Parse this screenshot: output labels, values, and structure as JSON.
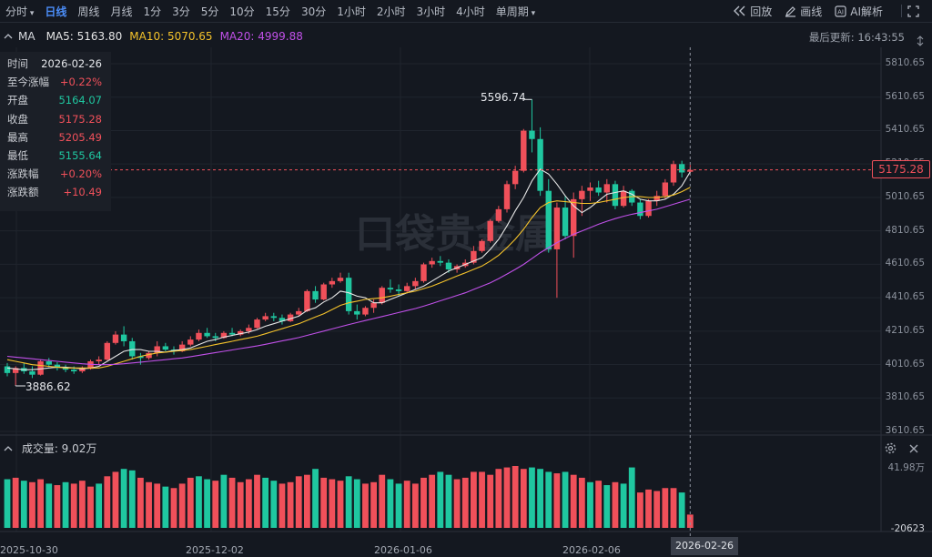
{
  "toolbar": {
    "intervals": [
      {
        "label": "分时",
        "dropdown": true
      },
      {
        "label": "日线",
        "active": true
      },
      {
        "label": "周线"
      },
      {
        "label": "月线"
      },
      {
        "label": "1分"
      },
      {
        "label": "3分"
      },
      {
        "label": "5分"
      },
      {
        "label": "10分"
      },
      {
        "label": "15分"
      },
      {
        "label": "30分"
      },
      {
        "label": "1小时"
      },
      {
        "label": "2小时"
      },
      {
        "label": "3小时"
      },
      {
        "label": "4小时"
      },
      {
        "label": "单周期",
        "dropdown": true
      }
    ],
    "replay_label": "回放",
    "draw_label": "画线",
    "ai_label": "AI解析"
  },
  "ma_bar": {
    "title": "MA",
    "ma5": "MA5: 5163.80",
    "ma10": "MA10: 5070.65",
    "ma20": "MA20: 4999.88",
    "last_update": "最后更新: 16:43:55",
    "colors": {
      "ma5": "#e6e6e6",
      "ma10": "#f5c32b",
      "ma20": "#c050e8"
    }
  },
  "info_panel": [
    {
      "key": "时间",
      "value": "2026-02-26",
      "color": "#e6e8ec"
    },
    {
      "key": "至今涨幅",
      "value": "+0.22%",
      "color": "#f0505a"
    },
    {
      "key": "开盘",
      "value": "5164.07",
      "color": "#1fc7a0"
    },
    {
      "key": "收盘",
      "value": "5175.28",
      "color": "#f0505a"
    },
    {
      "key": "最高",
      "value": "5205.49",
      "color": "#f0505a"
    },
    {
      "key": "最低",
      "value": "5155.64",
      "color": "#1fc7a0"
    },
    {
      "key": "涨跌幅",
      "value": "+0.20%",
      "color": "#f0505a"
    },
    {
      "key": "涨跌额",
      "value": "+10.49",
      "color": "#f0505a"
    }
  ],
  "price_axis": [
    "5810.65",
    "5610.65",
    "5410.65",
    "5210.65",
    "5010.65",
    "4810.65",
    "4610.65",
    "4410.65",
    "4210.65",
    "4010.65",
    "3810.65",
    "3610.65"
  ],
  "current_price": "5175.28",
  "annotations": {
    "high": "5596.74",
    "low": "3886.62"
  },
  "volume": {
    "title": "成交量: 9.02万",
    "max_label": "41.98万",
    "min_label": "-20623"
  },
  "date_axis": [
    "2025-10-30",
    "2025-12-02",
    "2026-01-06",
    "2026-02-06"
  ],
  "current_date": "2026-02-26",
  "watermark": "口袋贵金属",
  "colors": {
    "up": "#f0505a",
    "down": "#1fc7a0",
    "accent": "#4b8df8"
  },
  "chart_data": {
    "type": "candlestick",
    "ylim": [
      3610.65,
      5810.65
    ],
    "candles": [
      {
        "o": 4000,
        "h": 4020,
        "l": 3940,
        "c": 3960
      },
      {
        "o": 3960,
        "h": 4000,
        "l": 3886.62,
        "c": 3990
      },
      {
        "o": 3990,
        "h": 4020,
        "l": 3955,
        "c": 3970
      },
      {
        "o": 3970,
        "h": 4000,
        "l": 3930,
        "c": 3950
      },
      {
        "o": 3950,
        "h": 4040,
        "l": 3945,
        "c": 4030
      },
      {
        "o": 4030,
        "h": 4050,
        "l": 3995,
        "c": 4010
      },
      {
        "o": 4010,
        "h": 4025,
        "l": 3975,
        "c": 3990
      },
      {
        "o": 3990,
        "h": 4010,
        "l": 3965,
        "c": 3980
      },
      {
        "o": 3980,
        "h": 4000,
        "l": 3955,
        "c": 3970
      },
      {
        "o": 3970,
        "h": 4000,
        "l": 3960,
        "c": 3985
      },
      {
        "o": 3985,
        "h": 4040,
        "l": 3980,
        "c": 4030
      },
      {
        "o": 4030,
        "h": 4060,
        "l": 4010,
        "c": 4040
      },
      {
        "o": 4040,
        "h": 4150,
        "l": 4035,
        "c": 4140
      },
      {
        "o": 4140,
        "h": 4210,
        "l": 4130,
        "c": 4190
      },
      {
        "o": 4190,
        "h": 4240,
        "l": 4120,
        "c": 4150
      },
      {
        "o": 4150,
        "h": 4170,
        "l": 4040,
        "c": 4060
      },
      {
        "o": 4060,
        "h": 4080,
        "l": 4010,
        "c": 4050
      },
      {
        "o": 4050,
        "h": 4090,
        "l": 4040,
        "c": 4080
      },
      {
        "o": 4080,
        "h": 4150,
        "l": 4060,
        "c": 4120
      },
      {
        "o": 4120,
        "h": 4140,
        "l": 4090,
        "c": 4100
      },
      {
        "o": 4100,
        "h": 4120,
        "l": 4070,
        "c": 4090
      },
      {
        "o": 4090,
        "h": 4150,
        "l": 4085,
        "c": 4130
      },
      {
        "o": 4130,
        "h": 4180,
        "l": 4120,
        "c": 4160
      },
      {
        "o": 4160,
        "h": 4220,
        "l": 4150,
        "c": 4200
      },
      {
        "o": 4200,
        "h": 4230,
        "l": 4170,
        "c": 4180
      },
      {
        "o": 4180,
        "h": 4200,
        "l": 4150,
        "c": 4170
      },
      {
        "o": 4170,
        "h": 4210,
        "l": 4165,
        "c": 4200
      },
      {
        "o": 4200,
        "h": 4230,
        "l": 4180,
        "c": 4190
      },
      {
        "o": 4190,
        "h": 4220,
        "l": 4180,
        "c": 4210
      },
      {
        "o": 4210,
        "h": 4250,
        "l": 4195,
        "c": 4230
      },
      {
        "o": 4230,
        "h": 4290,
        "l": 4225,
        "c": 4280
      },
      {
        "o": 4280,
        "h": 4320,
        "l": 4270,
        "c": 4300
      },
      {
        "o": 4300,
        "h": 4320,
        "l": 4270,
        "c": 4290
      },
      {
        "o": 4290,
        "h": 4310,
        "l": 4250,
        "c": 4270
      },
      {
        "o": 4270,
        "h": 4320,
        "l": 4265,
        "c": 4310
      },
      {
        "o": 4310,
        "h": 4350,
        "l": 4300,
        "c": 4330
      },
      {
        "o": 4330,
        "h": 4460,
        "l": 4325,
        "c": 4450
      },
      {
        "o": 4450,
        "h": 4480,
        "l": 4380,
        "c": 4400
      },
      {
        "o": 4400,
        "h": 4500,
        "l": 4395,
        "c": 4490
      },
      {
        "o": 4490,
        "h": 4530,
        "l": 4470,
        "c": 4510
      },
      {
        "o": 4510,
        "h": 4560,
        "l": 4500,
        "c": 4530
      },
      {
        "o": 4530,
        "h": 4560,
        "l": 4310,
        "c": 4330
      },
      {
        "o": 4330,
        "h": 4370,
        "l": 4280,
        "c": 4310
      },
      {
        "o": 4310,
        "h": 4360,
        "l": 4300,
        "c": 4350
      },
      {
        "o": 4350,
        "h": 4400,
        "l": 4320,
        "c": 4380
      },
      {
        "o": 4380,
        "h": 4480,
        "l": 4370,
        "c": 4470
      },
      {
        "o": 4470,
        "h": 4520,
        "l": 4440,
        "c": 4460
      },
      {
        "o": 4460,
        "h": 4490,
        "l": 4420,
        "c": 4450
      },
      {
        "o": 4450,
        "h": 4500,
        "l": 4440,
        "c": 4480
      },
      {
        "o": 4480,
        "h": 4530,
        "l": 4460,
        "c": 4510
      },
      {
        "o": 4510,
        "h": 4620,
        "l": 4500,
        "c": 4610
      },
      {
        "o": 4610,
        "h": 4650,
        "l": 4590,
        "c": 4630
      },
      {
        "o": 4630,
        "h": 4660,
        "l": 4600,
        "c": 4620
      },
      {
        "o": 4620,
        "h": 4640,
        "l": 4560,
        "c": 4580
      },
      {
        "o": 4580,
        "h": 4610,
        "l": 4560,
        "c": 4600
      },
      {
        "o": 4600,
        "h": 4640,
        "l": 4590,
        "c": 4620
      },
      {
        "o": 4620,
        "h": 4720,
        "l": 4610,
        "c": 4690
      },
      {
        "o": 4690,
        "h": 4760,
        "l": 4680,
        "c": 4750
      },
      {
        "o": 4750,
        "h": 4880,
        "l": 4740,
        "c": 4870
      },
      {
        "o": 4870,
        "h": 4960,
        "l": 4860,
        "c": 4940
      },
      {
        "o": 4940,
        "h": 5110,
        "l": 4920,
        "c": 5090
      },
      {
        "o": 5090,
        "h": 5200,
        "l": 5060,
        "c": 5170
      },
      {
        "o": 5170,
        "h": 5420,
        "l": 5160,
        "c": 5410
      },
      {
        "o": 5410,
        "h": 5596.74,
        "l": 5280,
        "c": 5360
      },
      {
        "o": 5360,
        "h": 5430,
        "l": 5020,
        "c": 5050
      },
      {
        "o": 5050,
        "h": 5120,
        "l": 4680,
        "c": 4700
      },
      {
        "o": 4700,
        "h": 4980,
        "l": 4410,
        "c": 4950
      },
      {
        "o": 4950,
        "h": 5020,
        "l": 4760,
        "c": 4780
      },
      {
        "o": 4780,
        "h": 5040,
        "l": 4650,
        "c": 5000
      },
      {
        "o": 5000,
        "h": 5080,
        "l": 4900,
        "c": 5050
      },
      {
        "o": 5050,
        "h": 5100,
        "l": 4990,
        "c": 5070
      },
      {
        "o": 5070,
        "h": 5110,
        "l": 5020,
        "c": 5040
      },
      {
        "o": 5040,
        "h": 5120,
        "l": 4980,
        "c": 5090
      },
      {
        "o": 5090,
        "h": 5110,
        "l": 4940,
        "c": 4960
      },
      {
        "o": 4960,
        "h": 5080,
        "l": 4950,
        "c": 5050
      },
      {
        "o": 5050,
        "h": 5060,
        "l": 4960,
        "c": 4980
      },
      {
        "o": 4980,
        "h": 5000,
        "l": 4880,
        "c": 4900
      },
      {
        "o": 4900,
        "h": 5000,
        "l": 4890,
        "c": 4990
      },
      {
        "o": 4990,
        "h": 5050,
        "l": 4960,
        "c": 5020
      },
      {
        "o": 5020,
        "h": 5120,
        "l": 5000,
        "c": 5100
      },
      {
        "o": 5100,
        "h": 5230,
        "l": 5080,
        "c": 5210
      },
      {
        "o": 5210,
        "h": 5230,
        "l": 5130,
        "c": 5160
      },
      {
        "o": 5164.07,
        "h": 5205.49,
        "l": 5155.64,
        "c": 5175.28
      }
    ],
    "ma5": [
      3990,
      3985,
      3980,
      3980,
      3985,
      3990,
      3995,
      3995,
      3990,
      3985,
      3990,
      4000,
      4030,
      4060,
      4090,
      4100,
      4100,
      4090,
      4090,
      4085,
      4095,
      4100,
      4110,
      4130,
      4150,
      4160,
      4175,
      4185,
      4195,
      4205,
      4220,
      4240,
      4255,
      4270,
      4285,
      4300,
      4335,
      4350,
      4385,
      4410,
      4450,
      4440,
      4420,
      4410,
      4380,
      4380,
      4400,
      4420,
      4440,
      4460,
      4480,
      4510,
      4540,
      4570,
      4590,
      4610,
      4630,
      4650,
      4700,
      4760,
      4840,
      4930,
      5010,
      5110,
      5180,
      5150,
      5090,
      5020,
      4960,
      4920,
      4950,
      4990,
      5030,
      5040,
      5050,
      5030,
      5000,
      4990,
      4990,
      5000,
      5030,
      5080,
      5163.8
    ],
    "ma10": [
      4040,
      4030,
      4020,
      4010,
      4005,
      4000,
      3995,
      3990,
      3990,
      3990,
      3990,
      3990,
      4000,
      4015,
      4030,
      4045,
      4060,
      4070,
      4080,
      4085,
      4090,
      4095,
      4100,
      4110,
      4120,
      4130,
      4140,
      4150,
      4160,
      4170,
      4180,
      4195,
      4210,
      4225,
      4240,
      4255,
      4275,
      4295,
      4315,
      4340,
      4365,
      4380,
      4390,
      4400,
      4405,
      4410,
      4420,
      4430,
      4440,
      4450,
      4465,
      4480,
      4500,
      4520,
      4540,
      4560,
      4580,
      4600,
      4630,
      4665,
      4710,
      4760,
      4820,
      4890,
      4950,
      4980,
      4990,
      4985,
      4980,
      4975,
      4975,
      4980,
      4990,
      5000,
      5010,
      5015,
      5015,
      5010,
      5010,
      5015,
      5025,
      5045,
      5070.65
    ],
    "ma20": [
      4060,
      4055,
      4050,
      4045,
      4040,
      4035,
      4030,
      4025,
      4020,
      4015,
      4012,
      4010,
      4010,
      4012,
      4015,
      4020,
      4025,
      4030,
      4035,
      4040,
      4045,
      4050,
      4058,
      4066,
      4074,
      4082,
      4090,
      4098,
      4106,
      4114,
      4122,
      4132,
      4142,
      4152,
      4162,
      4172,
      4185,
      4198,
      4211,
      4224,
      4237,
      4250,
      4262,
      4274,
      4286,
      4298,
      4310,
      4322,
      4334,
      4346,
      4360,
      4376,
      4392,
      4408,
      4424,
      4440,
      4460,
      4480,
      4500,
      4525,
      4552,
      4580,
      4610,
      4645,
      4680,
      4710,
      4740,
      4765,
      4790,
      4810,
      4830,
      4850,
      4868,
      4884,
      4898,
      4910,
      4920,
      4930,
      4940,
      4955,
      4970,
      4985,
      4999.88
    ],
    "volume": [
      {
        "v": 33,
        "up": false
      },
      {
        "v": 34,
        "up": true
      },
      {
        "v": 32,
        "up": false
      },
      {
        "v": 31,
        "up": true
      },
      {
        "v": 33,
        "up": true
      },
      {
        "v": 30,
        "up": false
      },
      {
        "v": 29,
        "up": true
      },
      {
        "v": 31,
        "up": false
      },
      {
        "v": 30,
        "up": true
      },
      {
        "v": 32,
        "up": true
      },
      {
        "v": 28,
        "up": true
      },
      {
        "v": 30,
        "up": false
      },
      {
        "v": 35,
        "up": true
      },
      {
        "v": 38,
        "up": true
      },
      {
        "v": 40,
        "up": false
      },
      {
        "v": 39,
        "up": false
      },
      {
        "v": 34,
        "up": true
      },
      {
        "v": 31,
        "up": true
      },
      {
        "v": 30,
        "up": true
      },
      {
        "v": 28,
        "up": false
      },
      {
        "v": 27,
        "up": true
      },
      {
        "v": 30,
        "up": true
      },
      {
        "v": 34,
        "up": true
      },
      {
        "v": 35,
        "up": false
      },
      {
        "v": 33,
        "up": false
      },
      {
        "v": 32,
        "up": true
      },
      {
        "v": 36,
        "up": false
      },
      {
        "v": 34,
        "up": true
      },
      {
        "v": 31,
        "up": true
      },
      {
        "v": 33,
        "up": true
      },
      {
        "v": 36,
        "up": true
      },
      {
        "v": 34,
        "up": false
      },
      {
        "v": 32,
        "up": false
      },
      {
        "v": 30,
        "up": true
      },
      {
        "v": 31,
        "up": true
      },
      {
        "v": 35,
        "up": true
      },
      {
        "v": 36,
        "up": true
      },
      {
        "v": 40,
        "up": false
      },
      {
        "v": 34,
        "up": true
      },
      {
        "v": 33,
        "up": true
      },
      {
        "v": 32,
        "up": true
      },
      {
        "v": 35,
        "up": false
      },
      {
        "v": 33,
        "up": false
      },
      {
        "v": 30,
        "up": true
      },
      {
        "v": 31,
        "up": true
      },
      {
        "v": 36,
        "up": true
      },
      {
        "v": 33,
        "up": false
      },
      {
        "v": 30,
        "up": false
      },
      {
        "v": 32,
        "up": true
      },
      {
        "v": 30,
        "up": true
      },
      {
        "v": 34,
        "up": true
      },
      {
        "v": 36,
        "up": true
      },
      {
        "v": 38,
        "up": false
      },
      {
        "v": 36,
        "up": false
      },
      {
        "v": 33,
        "up": true
      },
      {
        "v": 34,
        "up": true
      },
      {
        "v": 38,
        "up": true
      },
      {
        "v": 38,
        "up": true
      },
      {
        "v": 36,
        "up": true
      },
      {
        "v": 40,
        "up": true
      },
      {
        "v": 41,
        "up": true
      },
      {
        "v": 41.98,
        "up": true
      },
      {
        "v": 40,
        "up": true
      },
      {
        "v": 41,
        "up": false
      },
      {
        "v": 40,
        "up": false
      },
      {
        "v": 38,
        "up": false
      },
      {
        "v": 37,
        "up": true
      },
      {
        "v": 38,
        "up": false
      },
      {
        "v": 36,
        "up": true
      },
      {
        "v": 34,
        "up": true
      },
      {
        "v": 31,
        "up": false
      },
      {
        "v": 32,
        "up": true
      },
      {
        "v": 29,
        "up": false
      },
      {
        "v": 31,
        "up": true
      },
      {
        "v": 30,
        "up": false
      },
      {
        "v": 41,
        "up": false
      },
      {
        "v": 24,
        "up": true
      },
      {
        "v": 26,
        "up": true
      },
      {
        "v": 25,
        "up": true
      },
      {
        "v": 27,
        "up": true
      },
      {
        "v": 27,
        "up": true
      },
      {
        "v": 24,
        "up": false
      },
      {
        "v": 9.02,
        "up": true
      }
    ]
  }
}
